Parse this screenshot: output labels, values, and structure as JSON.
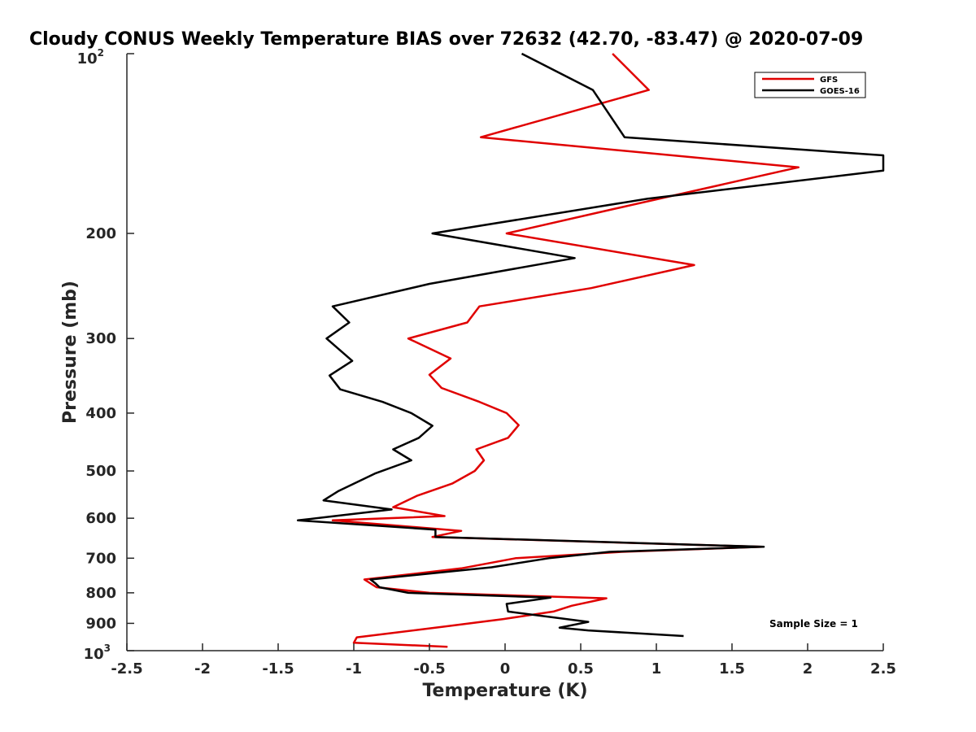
{
  "chart_data": {
    "type": "line",
    "title": "Cloudy CONUS Weekly Temperature BIAS over 72632 (42.70, -83.47) @ 2020-07-09",
    "xlabel": "Temperature (K)",
    "ylabel": "Pressure (mb)",
    "xlim": [
      -2.5,
      2.5
    ],
    "ylim": [
      100,
      1000
    ],
    "y_scale": "log",
    "y_reversed": true,
    "grid": false,
    "legend_position": "top-right",
    "x_ticks": [
      "-2.5",
      "-2",
      "-1.5",
      "-1",
      "-0.5",
      "0",
      "0.5",
      "1",
      "1.5",
      "2",
      "2.5"
    ],
    "y_ticks": [
      "200",
      "300",
      "400",
      "500",
      "600",
      "700",
      "800",
      "900"
    ],
    "y_tick_values": [
      200,
      300,
      400,
      500,
      600,
      700,
      800,
      900
    ],
    "y_end_labels": {
      "top_base": "10",
      "top_exp": "2",
      "bottom_base": "10",
      "bottom_exp": "3"
    },
    "annotation": "Sample Size = 1",
    "series": [
      {
        "name": "GFS",
        "color": "#e00000",
        "points": [
          [
            0.71,
            100
          ],
          [
            0.95,
            115
          ],
          [
            -0.16,
            138
          ],
          [
            1.94,
            155
          ],
          [
            0.72,
            182
          ],
          [
            0.01,
            200
          ],
          [
            1.25,
            226
          ],
          [
            0.57,
            247
          ],
          [
            -0.17,
            265
          ],
          [
            -0.25,
            282
          ],
          [
            -0.64,
            300
          ],
          [
            -0.36,
            324
          ],
          [
            -0.5,
            345
          ],
          [
            -0.42,
            363
          ],
          [
            -0.17,
            383
          ],
          [
            0.01,
            400
          ],
          [
            0.09,
            419
          ],
          [
            0.02,
            440
          ],
          [
            -0.19,
            460
          ],
          [
            -0.14,
            480
          ],
          [
            -0.2,
            500
          ],
          [
            -0.35,
            525
          ],
          [
            -0.58,
            550
          ],
          [
            -0.74,
            575
          ],
          [
            -0.4,
            595
          ],
          [
            -1.14,
            605
          ],
          [
            -0.29,
            630
          ],
          [
            -0.48,
            645
          ],
          [
            1.7,
            670
          ],
          [
            0.77,
            683
          ],
          [
            0.07,
            700
          ],
          [
            -0.29,
            728
          ],
          [
            -0.93,
            760
          ],
          [
            -0.85,
            783
          ],
          [
            -0.5,
            800
          ],
          [
            0.67,
            817
          ],
          [
            0.44,
            841
          ],
          [
            0.32,
            860
          ],
          [
            -0.01,
            885
          ],
          [
            -0.38,
            910
          ],
          [
            -0.98,
            950
          ],
          [
            -1.0,
            970
          ],
          [
            -0.38,
            985
          ]
        ]
      },
      {
        "name": "GOES-16",
        "color": "#000000",
        "points": [
          [
            0.11,
            100
          ],
          [
            0.58,
            115
          ],
          [
            0.79,
            138
          ],
          [
            2.5,
            148
          ],
          [
            2.5,
            157
          ],
          [
            0.94,
            175
          ],
          [
            -0.48,
            200
          ],
          [
            0.46,
            220
          ],
          [
            -0.5,
            243
          ],
          [
            -1.14,
            265
          ],
          [
            -1.03,
            282
          ],
          [
            -1.18,
            300
          ],
          [
            -1.01,
            327
          ],
          [
            -1.16,
            346
          ],
          [
            -1.09,
            365
          ],
          [
            -0.81,
            383
          ],
          [
            -0.62,
            400
          ],
          [
            -0.48,
            420
          ],
          [
            -0.57,
            440
          ],
          [
            -0.74,
            460
          ],
          [
            -0.62,
            480
          ],
          [
            -0.86,
            505
          ],
          [
            -1.1,
            540
          ],
          [
            -1.2,
            560
          ],
          [
            -0.75,
            580
          ],
          [
            -1.37,
            605
          ],
          [
            -0.46,
            627
          ],
          [
            -0.46,
            645
          ],
          [
            1.71,
            670
          ],
          [
            0.69,
            683
          ],
          [
            0.29,
            700
          ],
          [
            -0.09,
            725
          ],
          [
            -0.89,
            760
          ],
          [
            -0.86,
            770
          ],
          [
            -0.83,
            783
          ],
          [
            -0.64,
            800
          ],
          [
            0.3,
            815
          ],
          [
            0.01,
            835
          ],
          [
            0.02,
            860
          ],
          [
            0.55,
            895
          ],
          [
            0.36,
            915
          ],
          [
            0.55,
            925
          ],
          [
            1.18,
            945
          ]
        ]
      }
    ]
  }
}
